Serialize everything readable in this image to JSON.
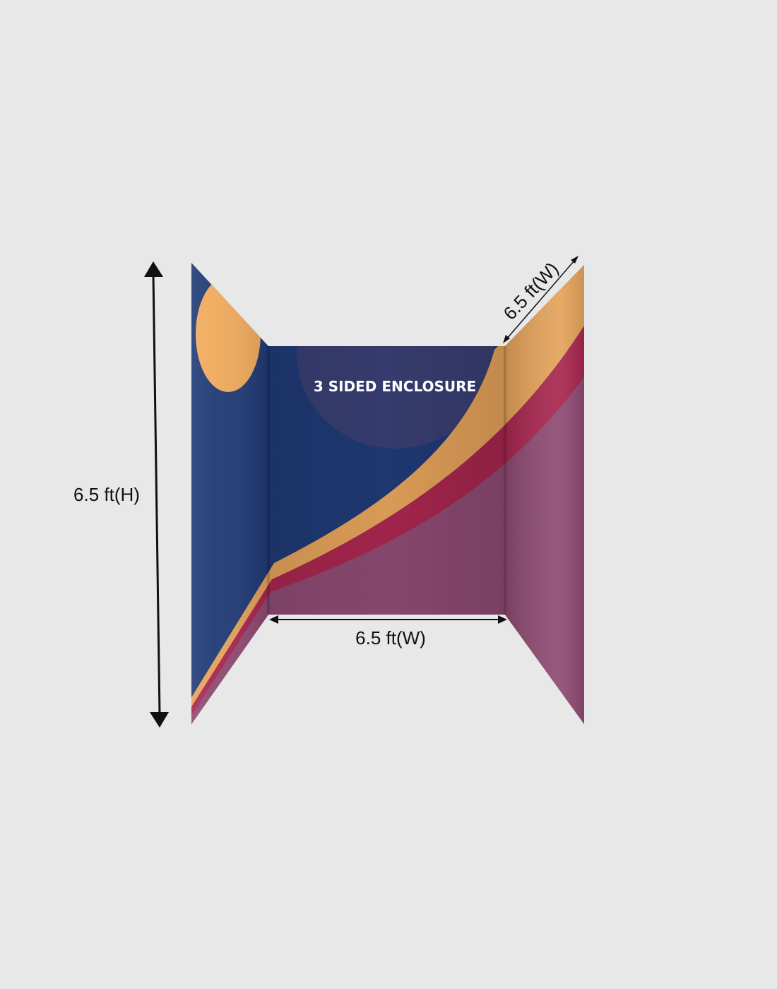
{
  "product": {
    "title": "3 SIDED ENCLOSURE"
  },
  "dimensions": {
    "height_label": "6.5 ft(H)",
    "back_width_label": "6.5 ft(W)",
    "side_width_label": "6.5 ft(W)"
  },
  "colors": {
    "background": "#e8e8e8",
    "navy": "#1f3a75",
    "orange": "#f0aa5c",
    "crimson": "#a8264f",
    "mauve": "#8e4a72",
    "arrow": "#111111"
  }
}
